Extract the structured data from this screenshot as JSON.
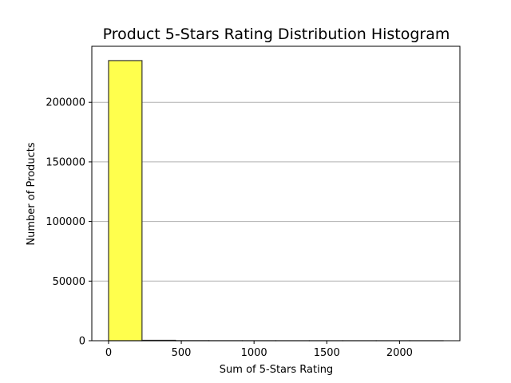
{
  "chart_data": {
    "type": "bar",
    "title": "Product 5-Stars Rating Distribution Histogram",
    "xlabel": "Sum of 5-Stars Rating",
    "ylabel": "Number of Products",
    "bins": [
      {
        "start": 0,
        "end": 230,
        "count": 235000
      },
      {
        "start": 230,
        "end": 460,
        "count": 350
      },
      {
        "start": 460,
        "end": 690,
        "count": 60
      },
      {
        "start": 690,
        "end": 920,
        "count": 20
      },
      {
        "start": 920,
        "end": 1150,
        "count": 8
      },
      {
        "start": 1150,
        "end": 1380,
        "count": 4
      },
      {
        "start": 1380,
        "end": 1610,
        "count": 2
      },
      {
        "start": 1610,
        "end": 1840,
        "count": 1
      },
      {
        "start": 1840,
        "end": 2070,
        "count": 1
      },
      {
        "start": 2070,
        "end": 2300,
        "count": 1
      }
    ],
    "xlim": [
      -115,
      2415
    ],
    "ylim": [
      0,
      247000
    ],
    "xticks": [
      0,
      500,
      1000,
      1500,
      2000
    ],
    "yticks": [
      0,
      50000,
      100000,
      150000,
      200000
    ],
    "grid": "y",
    "colors": {
      "bar_fill": "#ffff4d",
      "bar_edge": "#333333",
      "grid": "#b0b0b0",
      "axis": "#000000"
    }
  }
}
